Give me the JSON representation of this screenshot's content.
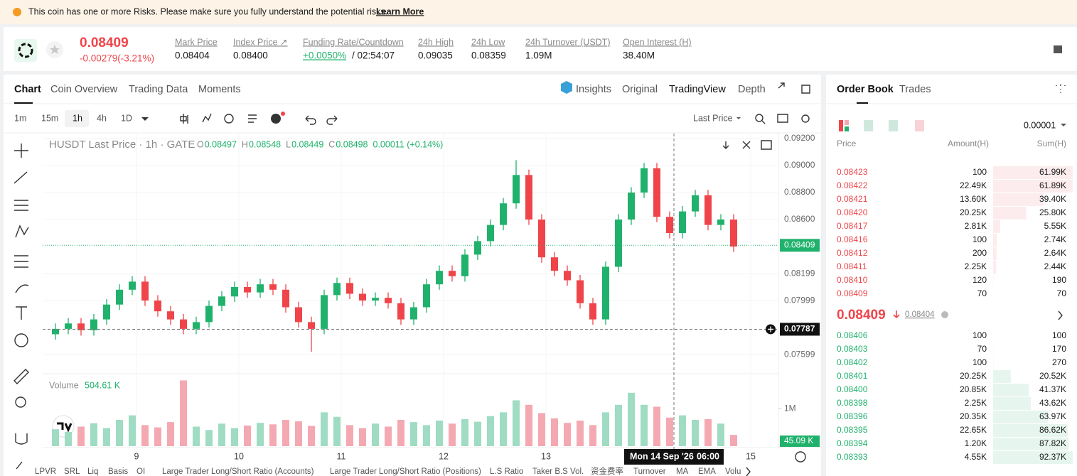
{
  "banner": {
    "text": "This coin has one or more Risks. Please make sure you fully understand the potential risks.",
    "link": "Learn More"
  },
  "ticker": {
    "price": "0.08409",
    "change": "-0.00279(-3.21%)",
    "stats": [
      {
        "label": "Mark Price",
        "value": "0.08404"
      },
      {
        "label": "Index Price ↗",
        "value": "0.08400"
      },
      {
        "label": "Funding Rate/Countdown",
        "value": "+0.0050%",
        "extra": "/ 02:54:07"
      },
      {
        "label": "24h High",
        "value": "0.09035"
      },
      {
        "label": "24h Low",
        "value": "0.08359"
      },
      {
        "label": "24h Turnover (USDT)",
        "value": "1.09M"
      },
      {
        "label": "Open Interest (H)",
        "value": "38.40M"
      }
    ]
  },
  "chart_tabs": [
    "Chart",
    "Coin Overview",
    "Trading Data",
    "Moments"
  ],
  "view_tabs": [
    "Insights",
    "Original",
    "TradingView",
    "Depth"
  ],
  "intervals": [
    "1m",
    "15m",
    "1h",
    "4h",
    "1D"
  ],
  "price_type": "Last Price",
  "chart_data": {
    "type": "candlestick",
    "title": "HUSDT Last Price · 1h · GATE",
    "legend": [
      {
        "key": "O",
        "value": "0.08497"
      },
      {
        "key": "H",
        "value": "0.08548"
      },
      {
        "key": "L",
        "value": "0.08449"
      },
      {
        "key": "C",
        "value": "0.08498"
      }
    ],
    "legend_change": "0.00011 (+0.14%)",
    "up_color": "#20b26c",
    "down_color": "#ef454a",
    "volume_up_color": "#9fdcc3",
    "volume_down_color": "#f4a9b2",
    "x": [
      5,
      8,
      11,
      14,
      17,
      20,
      23,
      26,
      29,
      32,
      35,
      38,
      41,
      44,
      47,
      50,
      53,
      56,
      59,
      62,
      65,
      68,
      71,
      74,
      77,
      80,
      83,
      86,
      89,
      92,
      95,
      98,
      101,
      104,
      107,
      110,
      113,
      116,
      119,
      122,
      125,
      128,
      131,
      134,
      137,
      140,
      143,
      146,
      149,
      152,
      155,
      158,
      161,
      164
    ],
    "open": [
      0.0775,
      0.0779,
      0.0783,
      0.0778,
      0.0786,
      0.0797,
      0.0808,
      0.0814,
      0.08,
      0.0792,
      0.0786,
      0.0779,
      0.0784,
      0.0796,
      0.0803,
      0.081,
      0.0806,
      0.0812,
      0.0808,
      0.0795,
      0.0784,
      0.0779,
      0.0804,
      0.0813,
      0.0805,
      0.08,
      0.0802,
      0.0798,
      0.0786,
      0.0795,
      0.0812,
      0.0822,
      0.0818,
      0.0834,
      0.0844,
      0.0856,
      0.0872,
      0.0893,
      0.086,
      0.0832,
      0.0822,
      0.0815,
      0.0798,
      0.0786,
      0.0825,
      0.086,
      0.088,
      0.0898,
      0.0862,
      0.085,
      0.0866,
      0.0878,
      0.0856,
      0.086
    ],
    "high": [
      0.0783,
      0.0787,
      0.0787,
      0.079,
      0.0801,
      0.0812,
      0.0818,
      0.0818,
      0.0804,
      0.0796,
      0.079,
      0.0788,
      0.08,
      0.0807,
      0.0814,
      0.0814,
      0.0816,
      0.0816,
      0.0812,
      0.0799,
      0.0788,
      0.0808,
      0.0817,
      0.0817,
      0.0809,
      0.0806,
      0.0806,
      0.0802,
      0.0799,
      0.0816,
      0.0826,
      0.0826,
      0.0838,
      0.0848,
      0.086,
      0.0876,
      0.0904,
      0.0897,
      0.0864,
      0.0836,
      0.0826,
      0.0819,
      0.0802,
      0.0829,
      0.0864,
      0.0884,
      0.0902,
      0.0902,
      0.0866,
      0.087,
      0.0882,
      0.0882,
      0.0864,
      0.0864
    ],
    "low": [
      0.0771,
      0.0775,
      0.0774,
      0.0774,
      0.0782,
      0.0793,
      0.0804,
      0.0796,
      0.0788,
      0.0782,
      0.0775,
      0.0775,
      0.078,
      0.0792,
      0.0799,
      0.0802,
      0.0802,
      0.0804,
      0.0791,
      0.078,
      0.0762,
      0.0775,
      0.08,
      0.0801,
      0.0796,
      0.0796,
      0.0794,
      0.0782,
      0.0782,
      0.0791,
      0.0808,
      0.0814,
      0.0814,
      0.083,
      0.084,
      0.0852,
      0.0868,
      0.0856,
      0.0828,
      0.0818,
      0.0811,
      0.0794,
      0.0782,
      0.0782,
      0.0821,
      0.0856,
      0.0876,
      0.0858,
      0.0846,
      0.0846,
      0.0862,
      0.0852,
      0.0852,
      0.0836
    ],
    "close": [
      0.0779,
      0.0783,
      0.0778,
      0.0786,
      0.0797,
      0.0808,
      0.0814,
      0.08,
      0.0792,
      0.0786,
      0.0779,
      0.0784,
      0.0796,
      0.0803,
      0.081,
      0.0806,
      0.0812,
      0.0808,
      0.0795,
      0.0784,
      0.0779,
      0.0804,
      0.0813,
      0.0805,
      0.08,
      0.0802,
      0.0798,
      0.0786,
      0.0795,
      0.0812,
      0.0822,
      0.0818,
      0.0834,
      0.0844,
      0.0856,
      0.0872,
      0.0893,
      0.086,
      0.0832,
      0.0822,
      0.0815,
      0.0798,
      0.0786,
      0.0825,
      0.086,
      0.088,
      0.0898,
      0.0862,
      0.085,
      0.0866,
      0.0878,
      0.0856,
      0.086,
      0.084
    ],
    "volume": [
      450000,
      380000,
      520000,
      610000,
      480000,
      700000,
      820000,
      560000,
      500000,
      640000,
      1750000,
      520000,
      430000,
      600000,
      480000,
      550000,
      620000,
      580000,
      700000,
      660000,
      540000,
      900000,
      780000,
      560000,
      480000,
      600000,
      520000,
      700000,
      640000,
      560000,
      680000,
      600000,
      720000,
      650000,
      800000,
      900000,
      1220000,
      1100000,
      880000,
      740000,
      620000,
      680000,
      560000,
      900000,
      1100000,
      1420000,
      1100000,
      1050000,
      760000,
      820000,
      700000,
      720000,
      600000,
      300000
    ],
    "xlim": [
      2,
      174.5
    ],
    "ylim": [
      0.07463,
      0.09237
    ],
    "xticks": [
      {
        "value": 24,
        "label": "9"
      },
      {
        "value": 48,
        "label": "10"
      },
      {
        "value": 72,
        "label": "11"
      },
      {
        "value": 96,
        "label": "12"
      },
      {
        "value": 120,
        "label": "13"
      },
      {
        "value": 168,
        "label": "15"
      }
    ],
    "yticks": [
      {
        "value": 0.092,
        "label": "0.09200"
      },
      {
        "value": 0.09,
        "label": "0.09000"
      },
      {
        "value": 0.088,
        "label": "0.08800"
      },
      {
        "value": 0.086,
        "label": "0.08600"
      },
      0.08199,
      0.07999,
      0.07599
    ],
    "grid": true,
    "last_price": 0.08409,
    "crosshair_price": 0.07787,
    "crosshair_x": 150,
    "crosshair_date": "Mon 14 Sep '26",
    "crosshair_time": "06:00",
    "volume_title": "Volume",
    "volume_value": "504.61 K",
    "last_volume": "45.09 K",
    "vylim": [
      0,
      1890000
    ],
    "vyticks": [
      {
        "value": 1000000,
        "label": "1M"
      }
    ]
  },
  "indicators": [
    "LPVR",
    "SRL",
    "Liq",
    "Basis",
    "OI",
    "Large Trader Long/Short Ratio (Accounts)",
    "Large Trader Long/Short Ratio (Positions)",
    "L.S Ratio",
    "Taker B.S Vol.",
    "资金费率",
    "Turnover",
    "MA",
    "EMA",
    "Volu"
  ],
  "order_book": {
    "tabs": [
      "Order Book",
      "Trades"
    ],
    "precision": "0.00001",
    "headers": [
      "Price",
      "Amount(H)",
      "Sum(H)"
    ],
    "asks": {
      "prices": [
        "0.08423",
        "0.08422",
        "0.08421",
        "0.08420",
        "0.08417",
        "0.08416",
        "0.08412",
        "0.08411",
        "0.08410",
        "0.08409"
      ],
      "amounts": [
        "100",
        "22.49K",
        "13.60K",
        "20.25K",
        "2.81K",
        "100",
        "200",
        "2.25K",
        "120",
        "70"
      ],
      "sums": [
        61990,
        61890,
        39400,
        25800,
        5550,
        2740,
        2640,
        2440,
        190,
        70
      ],
      "value_labels": [
        "61.99K",
        "61.89K",
        "39.40K",
        "25.80K",
        "5.55K",
        "2.74K",
        "2.64K",
        "2.44K",
        "190",
        "70"
      ]
    },
    "mid_price": "0.08409",
    "mark_price": "0.08404",
    "bids": {
      "prices": [
        "0.08406",
        "0.08403",
        "0.08402",
        "0.08401",
        "0.08400",
        "0.08398",
        "0.08396",
        "0.08395",
        "0.08394",
        "0.08393"
      ],
      "amounts": [
        "100",
        "70",
        "100",
        "20.25K",
        "20.85K",
        "2.25K",
        "20.35K",
        "22.65K",
        "1.20K",
        "4.55K"
      ],
      "sums": [
        100,
        170,
        270,
        20520,
        41370,
        43620,
        63970,
        86620,
        87820,
        92370
      ],
      "value_labels": [
        "100",
        "170",
        "270",
        "20.52K",
        "41.37K",
        "43.62K",
        "63.97K",
        "86.62K",
        "87.82K",
        "92.37K"
      ]
    }
  }
}
